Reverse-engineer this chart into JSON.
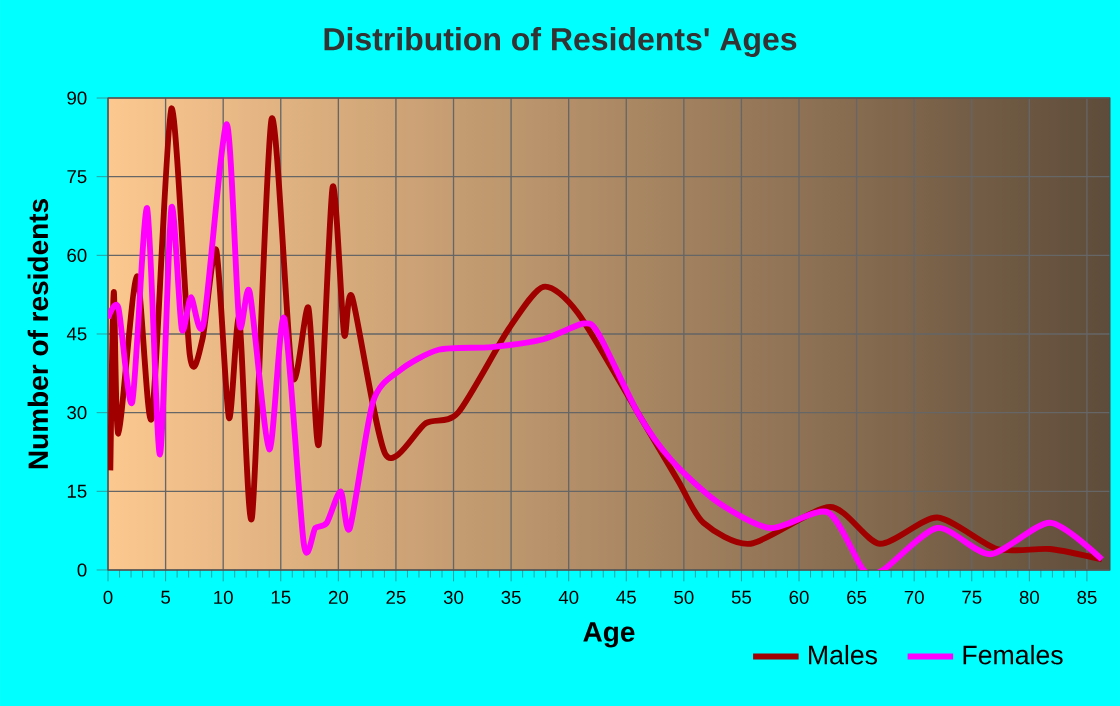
{
  "chart_data": {
    "type": "line",
    "title": "Distribution of Residents' Ages",
    "xlabel": "Age",
    "ylabel": "Number of residents",
    "xlim": [
      0,
      87
    ],
    "xticks": [
      0,
      5,
      10,
      15,
      20,
      25,
      30,
      35,
      40,
      45,
      50,
      55,
      60,
      65,
      70,
      75,
      80,
      85
    ],
    "ylim": [
      0,
      90
    ],
    "yticks": [
      0,
      15,
      30,
      45,
      60,
      75,
      90
    ],
    "grid": true,
    "legend": "bottom",
    "series": [
      {
        "name": "Males",
        "color": "#a00000",
        "x": [
          0.2,
          0.5,
          0.9,
          2.5,
          3.8,
          5.5,
          7.1,
          8.2,
          9.4,
          10.5,
          11.4,
          12.5,
          14.2,
          16,
          17.4,
          18.3,
          19.5,
          20.5,
          21.2,
          24.1,
          27.6,
          30.4,
          34.8,
          37.8,
          40.8,
          46,
          49.5,
          51.7,
          55.8,
          62.7,
          67,
          72,
          77.2,
          81.8,
          86.3
        ],
        "values": [
          19,
          53,
          26,
          56,
          29,
          88,
          41,
          44,
          61,
          29,
          48,
          10,
          86,
          37,
          50,
          24,
          73,
          45,
          52,
          22,
          28,
          30,
          46,
          54,
          49,
          30,
          17,
          9,
          5,
          12,
          5,
          10,
          4,
          4,
          2
        ]
      },
      {
        "name": "Females",
        "color": "#ff00ff",
        "x": [
          0,
          0.9,
          2.1,
          3.4,
          4.5,
          5.5,
          6.4,
          7.2,
          8.3,
          10.3,
          11.4,
          12.3,
          14,
          15.3,
          17,
          18,
          19,
          20.2,
          21,
          23,
          25.3,
          28.7,
          33.3,
          37.8,
          41.3,
          42.6,
          46,
          48.9,
          52.9,
          57.5,
          62.5,
          65.6,
          67.3,
          72,
          76.6,
          81.8,
          86.3
        ],
        "values": [
          48,
          50,
          32,
          69,
          22,
          69,
          46,
          52,
          47,
          85,
          47,
          53,
          23,
          48,
          5,
          8,
          9,
          15,
          8,
          32,
          38,
          42,
          42.5,
          44,
          47,
          45,
          30,
          21,
          13,
          8,
          11,
          0,
          0,
          8,
          3,
          9,
          2
        ]
      }
    ]
  }
}
